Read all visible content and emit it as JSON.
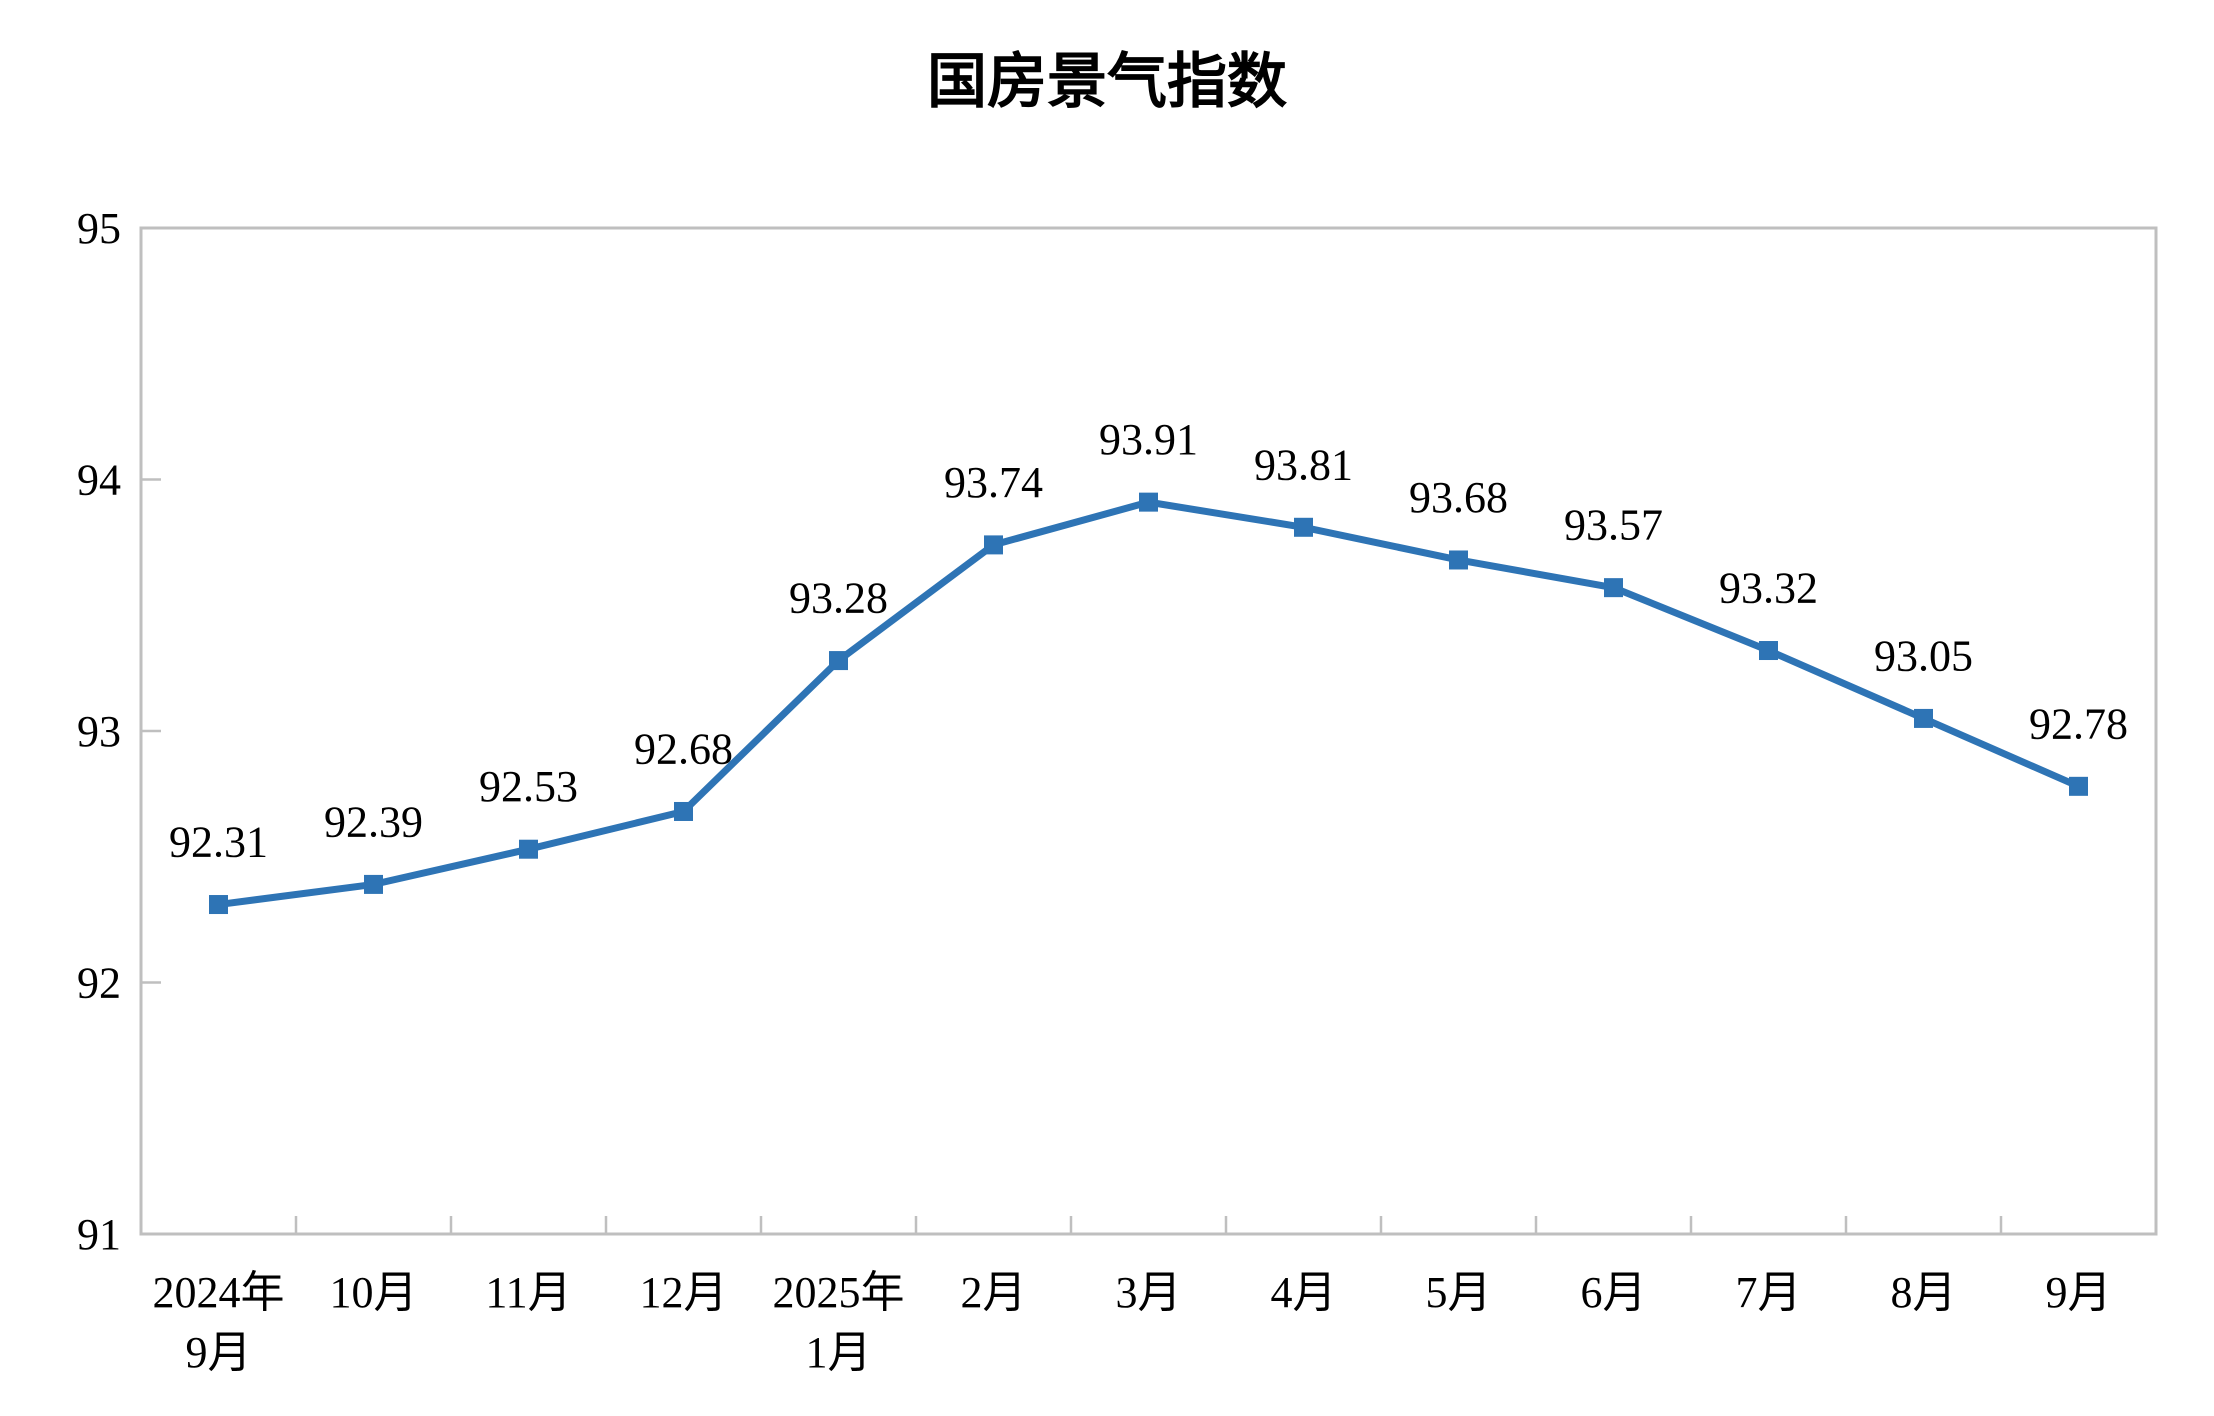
{
  "page": {
    "background_color": "#ffffff"
  },
  "chart_data": {
    "type": "line",
    "title": "国房景气指数",
    "series_name": "国房景气指数",
    "categories": [
      "2024年\n9月",
      "10月",
      "11月",
      "12月",
      "2025年\n1月",
      "2月",
      "3月",
      "4月",
      "5月",
      "6月",
      "7月",
      "8月",
      "9月"
    ],
    "values": [
      92.31,
      92.39,
      92.53,
      92.68,
      93.28,
      93.74,
      93.91,
      93.81,
      93.68,
      93.57,
      93.32,
      93.05,
      92.78
    ],
    "data_labels": [
      "92.31",
      "92.39",
      "92.53",
      "92.68",
      "93.28",
      "93.74",
      "93.91",
      "93.81",
      "93.68",
      "93.57",
      "93.32",
      "93.05",
      "92.78"
    ],
    "xlabel": "",
    "ylabel": "",
    "ylim": [
      91,
      95
    ],
    "y_ticks": [
      91,
      92,
      93,
      94,
      95
    ],
    "grid": false,
    "legend_position": "none",
    "data_labels_position": "above",
    "marker": "square",
    "line_color": "#2E74B5",
    "marker_color": "#2E74B5",
    "axis_color": "#BFBFBF",
    "text_color": "#000000"
  }
}
